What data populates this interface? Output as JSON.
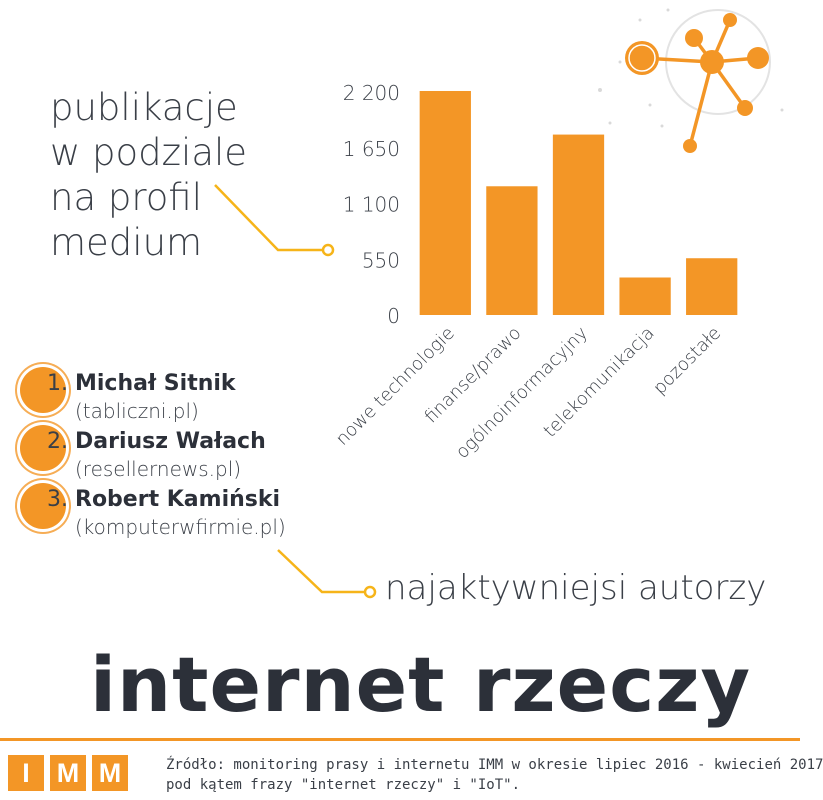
{
  "chart_data": {
    "type": "bar",
    "title_lines": [
      "publikacje",
      "w podziale",
      "na profil",
      "medium"
    ],
    "categories": [
      "nowe technologie",
      "finanse/prawo",
      "ogólnoinformacyjny",
      "telekomunikacja",
      "pozostałe"
    ],
    "values": [
      2210,
      1270,
      1780,
      370,
      560
    ],
    "y_ticks": [
      "0",
      "550",
      "1 100",
      "1 650",
      "2 200"
    ],
    "y_tick_values": [
      0,
      550,
      1100,
      1650,
      2200
    ],
    "ylim": [
      0,
      2200
    ],
    "xlabel": "",
    "ylabel": "",
    "grid": false,
    "bar_color": "#f39626"
  },
  "authors": [
    {
      "num": "1.",
      "name": "Michał Sitnik",
      "site": "(tablicznі.pl)"
    },
    {
      "num": "2.",
      "name": "Dariusz Wałach",
      "site": "(resellernews.pl)"
    },
    {
      "num": "3.",
      "name": "Robert Kamiński",
      "site": "(komputerwfirmie.pl)"
    }
  ],
  "authors_caption": "najaktywniejsi autorzy",
  "headline": "internet rzeczy",
  "logo_letters": [
    "I",
    "M",
    "M"
  ],
  "source_lines": [
    "Źródło: monitoring prasy i internetu IMM w okresie lipiec 2016 - kwiecień 2017",
    "pod kątem frazy \"internet rzeczy\" i \"IoT\"."
  ],
  "icons": [
    "network-graph-icon"
  ],
  "colors": {
    "accent": "#f39626",
    "text": "#3a3f47",
    "heading": "#2c3039",
    "connector": "#f6b419"
  }
}
